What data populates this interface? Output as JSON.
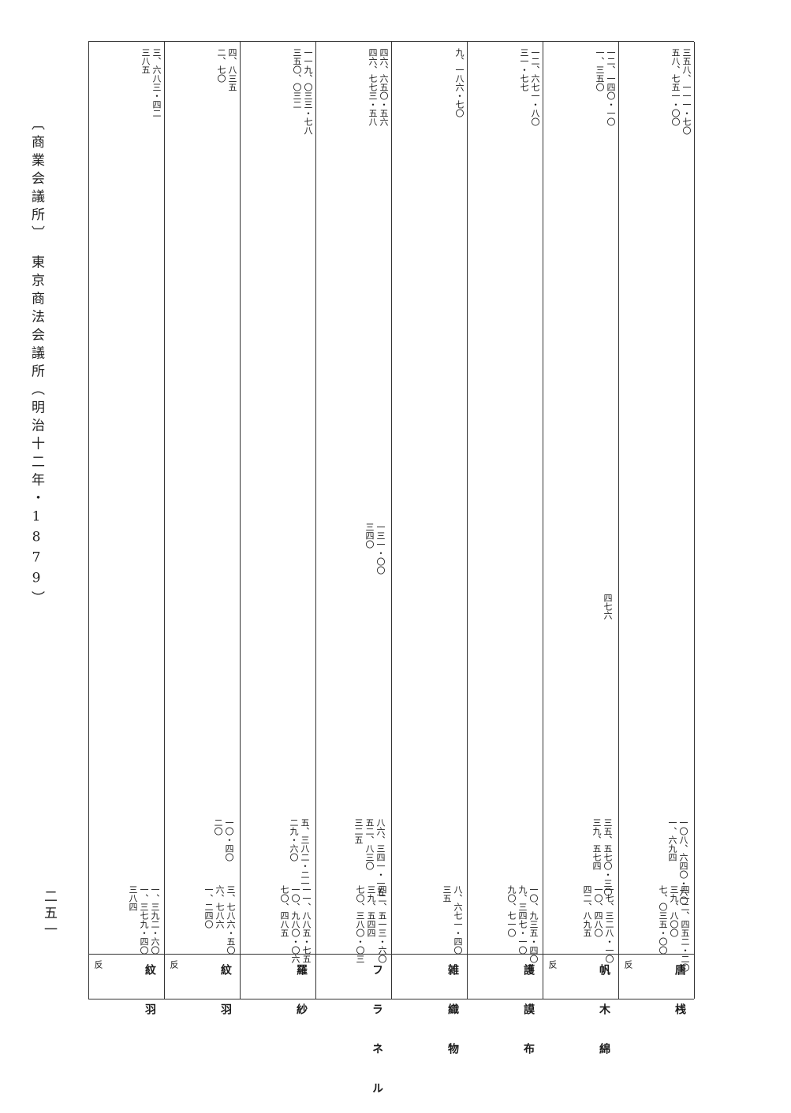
{
  "margin": {
    "header": "〔商業会議所〕　東京商法会議所（明治十二年・1879）",
    "page_number": "二五一"
  },
  "columns": [
    {
      "label": "唐 桟",
      "unit": "反",
      "top_values": [
        "三五八、一一一・七〇",
        "五八、七五一・〇〇"
      ],
      "mid_values": [],
      "low_values": [
        "一〇八、六四〇・六〇",
        "一、六九四"
      ],
      "bottom_values": [
        "四一二、四五二・二〇",
        "三九、八〇〇",
        "七、〇三五・〇〇"
      ]
    },
    {
      "label": "帆 木 綿",
      "unit": "反",
      "top_values": [
        "一二、一四〇・一〇",
        "一、三五〇"
      ],
      "mid_values": [
        "四七六"
      ],
      "low_values": [
        "三五、五七〇・三〇",
        "三九、五七四"
      ],
      "bottom_values": [
        "一七、三二八・一〇",
        "一〇、四八〇",
        "四二、八九五"
      ]
    },
    {
      "label": "護 謨 布",
      "unit": "",
      "top_values": [
        "一二、六七一・八〇",
        "三一・七七"
      ],
      "mid_values": [],
      "low_values": [],
      "bottom_values": [
        "一〇、九三五・四〇",
        "九、三四七・一〇",
        "九〇、七一〇"
      ]
    },
    {
      "label": "雑 織 物",
      "unit": "",
      "top_values": [
        "九、一八六・七〇"
      ],
      "mid_values": [],
      "low_values": [],
      "bottom_values": [
        "八、六七一・四〇",
        "三五"
      ]
    },
    {
      "label": "フ ラ ネ ル",
      "unit": "",
      "top_values": [
        "四六、六五〇・五六",
        "四六、七七三・五八"
      ],
      "mid_values": [
        "一三一・〇〇",
        "三四〇"
      ],
      "low_values": [
        "八六、三四一・一五",
        "五二、八三〇",
        "三二五"
      ],
      "bottom_values": [
        "四二、五一三・六〇",
        "三九、五四四",
        "七〇、三八〇・〇三"
      ]
    },
    {
      "label": "羅 紗",
      "unit": "",
      "top_values": [
        "一一九、〇三三・七八",
        "三五〇、〇三二"
      ],
      "mid_values": [],
      "low_values": [
        "五、三八二・二一",
        "二九・六〇"
      ],
      "bottom_values": [
        "一一、八八五・七五",
        "一〇、九八〇・〇六",
        "七〇、四八五"
      ]
    },
    {
      "label": "紋 羽",
      "unit": "反",
      "top_values": [
        "四、八三五",
        "二、七〇"
      ],
      "mid_values": [],
      "low_values": [
        "一〇・四〇",
        "二〇"
      ],
      "bottom_values": [
        "三、七八六・五〇",
        "六、七八六",
        "一、二四〇"
      ]
    },
    {
      "label": "紋 羽",
      "unit": "反",
      "top_values": [
        "三、六八三・四二",
        "三八五"
      ],
      "mid_values": [],
      "low_values": [],
      "bottom_values": [
        "一、三九二・六〇",
        "一、三七九・四〇",
        "三八四"
      ]
    }
  ]
}
